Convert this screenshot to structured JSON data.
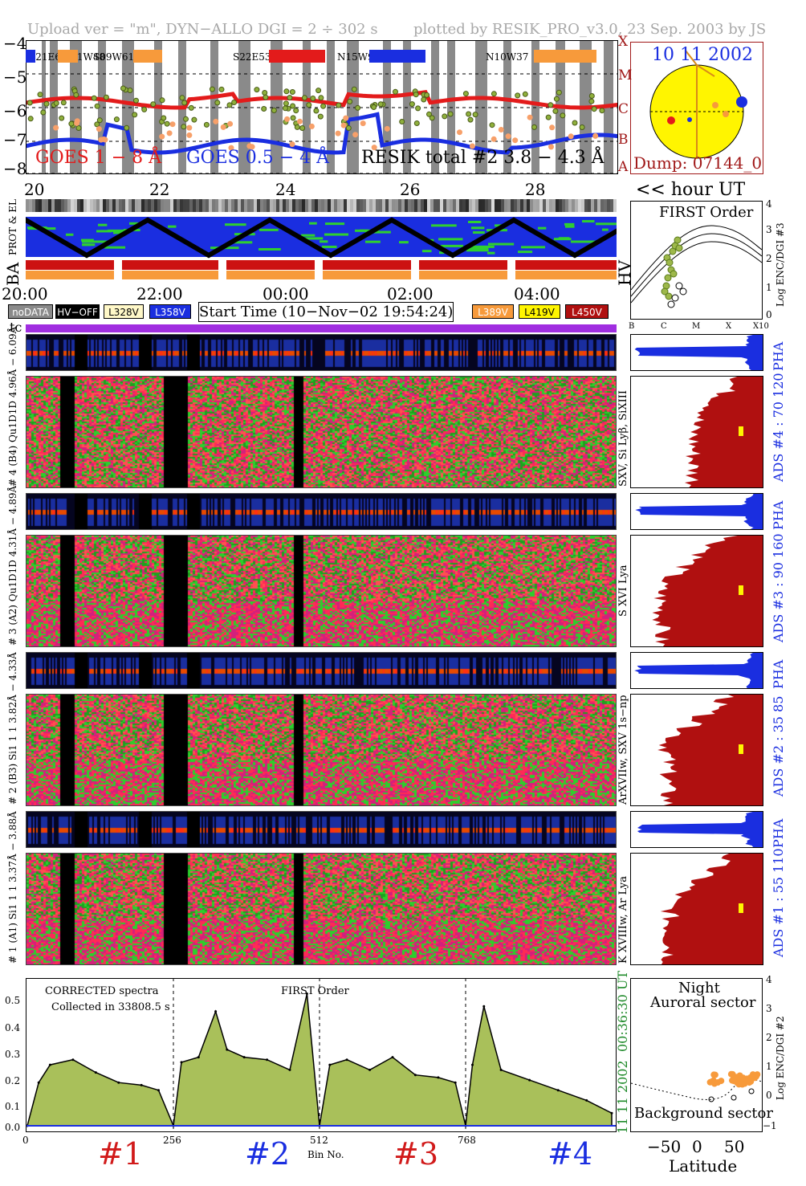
{
  "header": {
    "left": "Upload ver = \"m\", DYN−ALLO DGI =   2 ÷ 302 s",
    "right": "plotted by RESIK_PRO_v3.0, 23 Sep. 2003 by JS"
  },
  "goes_panel": {
    "yticks": [
      "−4",
      "−5",
      "−6",
      "−7",
      "−8"
    ],
    "class_letters": [
      "X",
      "M",
      "C",
      "B",
      "A"
    ],
    "xticks_top": [
      "20",
      "22",
      "24",
      "26",
      "28"
    ],
    "legend_goes18": "GOES 1 − 8 Å",
    "legend_goes054": "GOES 0.5 − 4 Å",
    "legend_resik": "RESIK total #2  3.8 − 4.3 Å",
    "regions": [
      "S21E64",
      "S11W48",
      "S09W61",
      "S22E53",
      "N15W90",
      "N10W37"
    ],
    "xaxis_note": "<< hour UT",
    "colors": {
      "goes18": "#e31b1b",
      "goes054": "#1a2ee0",
      "resik": "#8fb03c",
      "shade": "#8a8a8a"
    }
  },
  "sun_panel": {
    "date": "10 11 2002",
    "dump": "Dump: 07144_0"
  },
  "orbit_panel": {
    "labels": [
      "PROT & EL",
      "BA"
    ],
    "hv_label": "HV",
    "time_ticks": [
      "20:00",
      "22:00",
      "00:00",
      "02:00",
      "04:00"
    ]
  },
  "legend_row": {
    "chips_left": [
      "noDATA",
      "HV−OFF",
      "L328V",
      "L358V"
    ],
    "start_time": "Start Time (10−Nov−02 19:54:24)",
    "chips_right": [
      "L389V",
      "L419V",
      "L450V"
    ],
    "tc": "tc"
  },
  "first_order": {
    "title": "FIRST Order",
    "yticks": [
      "4",
      "3",
      "2",
      "1",
      "0"
    ],
    "xticks": [
      "B",
      "C",
      "M",
      "X",
      "X10"
    ],
    "ylabel": "Log ENC/DGI #3"
  },
  "channels": [
    {
      "pha_label": "# 4 (B4)   Qu1D1D 4.96Å − 6.09Å",
      "ads_label": "SXV, Si Lyβ, SiXIII",
      "ads_range": "ADS #4 :   70 120",
      "pha": "PHA"
    },
    {
      "pha_label": "# 3 (A2)   Qu1D1D 4.31Å − 4.89Å",
      "ads_label": "S XVI Lya",
      "ads_range": "ADS #3 :   90 160",
      "pha": "PHA"
    },
    {
      "pha_label": "# 2 (B3)   Si1 1 1  3.82Å − 4.33Å",
      "ads_label": "ArXVIIw, SXV 1s−np",
      "ads_range": "ADS #2 :   35 85",
      "pha": "PHA"
    },
    {
      "pha_label": "# 1 (A1)   Si1 1 1  3.37Å − 3.88Å",
      "ads_label": "K XVIIIw, Ar Lya",
      "ads_range": "ADS #1 :   55 110",
      "pha": "PHA"
    }
  ],
  "spectrum_panel": {
    "note1": "CORRECTED spectra",
    "note2": "Collected in 33808.5 s",
    "first_order": "FIRST Order",
    "yticks": [
      "0.5",
      "0.4",
      "0.3",
      "0.2",
      "0.1",
      "0.0"
    ],
    "xticks": [
      "0",
      "256",
      "512",
      "768"
    ],
    "xlabel": "Bin No.",
    "date_stamp": "11 11 2002",
    "time_stamp": "00:36:30 UT",
    "sections": [
      "#1",
      "#2",
      "#3",
      "#4"
    ],
    "section_colors": [
      "#d11a1a",
      "#1a2ee0",
      "#d11a1a",
      "#1a2ee0"
    ]
  },
  "latitude_panel": {
    "title1": "Night",
    "title2": "Auroral sector",
    "bottom": "Background sector",
    "xticks": [
      "−50",
      "0",
      "50"
    ],
    "xlabel": "Latitude",
    "yticks": [
      "4",
      "3",
      "2",
      "1",
      "0",
      "−1"
    ],
    "ylabel": "Log ENC/DGI #2"
  },
  "chart_data": {
    "type": "line",
    "title": "",
    "xlabel": "Bin No.",
    "ylabel": "",
    "xlim": [
      0,
      1024
    ],
    "ylim": [
      0,
      0.55
    ],
    "series": [
      {
        "name": "",
        "x": [
          0,
          20,
          40,
          80,
          120,
          160,
          200,
          230,
          256,
          270,
          300,
          330,
          350,
          380,
          420,
          460,
          490,
          512,
          530,
          560,
          600,
          640,
          680,
          720,
          750,
          768,
          780,
          800,
          830,
          880,
          930,
          980,
          1024
        ],
        "values": [
          0.0,
          0.17,
          0.24,
          0.26,
          0.21,
          0.17,
          0.16,
          0.14,
          0.0,
          0.25,
          0.27,
          0.45,
          0.3,
          0.27,
          0.26,
          0.22,
          0.52,
          0.0,
          0.24,
          0.26,
          0.22,
          0.27,
          0.2,
          0.19,
          0.17,
          0.0,
          0.24,
          0.47,
          0.22,
          0.18,
          0.14,
          0.1,
          0.05
        ]
      }
    ]
  }
}
